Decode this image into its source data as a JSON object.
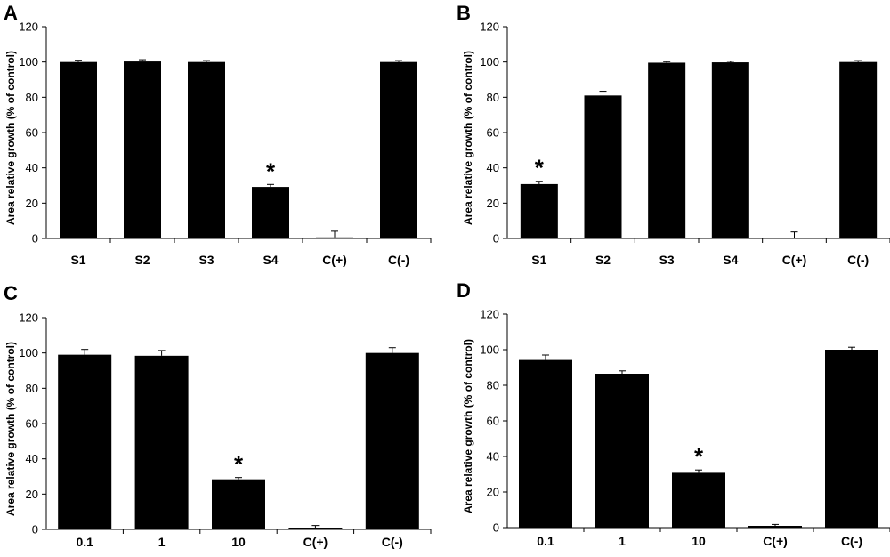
{
  "chart_data": [
    {
      "panel": "A",
      "type": "bar",
      "categories": [
        "S1",
        "S2",
        "S3",
        "S4",
        "C(+)",
        "C(-)"
      ],
      "values": [
        100,
        100.3,
        100,
        29.2,
        0.6,
        100
      ],
      "errors": [
        1.0,
        1.0,
        0.8,
        1.4,
        3.5,
        0.8
      ],
      "significant": [
        false,
        false,
        false,
        true,
        false,
        false
      ],
      "marker": "*",
      "ylabel": "Area relative growth  (% of control)",
      "yticks": [
        0,
        20,
        40,
        60,
        80,
        100,
        120
      ],
      "ylim": [
        0,
        120
      ],
      "color": "#000000"
    },
    {
      "panel": "B",
      "type": "bar",
      "categories": [
        "S1",
        "S2",
        "S3",
        "S4",
        "C(+)",
        "C(-)"
      ],
      "values": [
        30.8,
        81,
        99.6,
        99.8,
        0.5,
        100
      ],
      "errors": [
        1.6,
        2.4,
        0.6,
        0.6,
        3.2,
        0.8
      ],
      "significant": [
        true,
        false,
        false,
        false,
        false,
        false
      ],
      "marker": "*",
      "ylabel": "Area relative growth  (% of control)",
      "yticks": [
        0,
        20,
        40,
        60,
        80,
        100,
        120
      ],
      "ylim": [
        0,
        120
      ],
      "color": "#000000"
    },
    {
      "panel": "C",
      "type": "bar",
      "categories": [
        "0.1",
        "1",
        "10",
        "C(+)",
        "C(-)"
      ],
      "values": [
        99,
        98.4,
        28.4,
        1.0,
        100
      ],
      "errors": [
        3.0,
        3.0,
        1.0,
        1.2,
        3.0
      ],
      "significant": [
        false,
        false,
        true,
        false,
        false
      ],
      "marker": "*",
      "ylabel": "Area relative growth  (% of control)",
      "yticks": [
        0,
        20,
        40,
        60,
        80,
        100,
        120
      ],
      "ylim": [
        0,
        120
      ],
      "color": "#000000"
    },
    {
      "panel": "D",
      "type": "bar",
      "categories": [
        "0.1",
        "1",
        "10",
        "C(+)",
        "C(-)"
      ],
      "values": [
        94.2,
        86.5,
        30.8,
        1.0,
        100
      ],
      "errors": [
        2.8,
        1.6,
        1.6,
        0.8,
        1.4
      ],
      "significant": [
        false,
        false,
        true,
        false,
        false
      ],
      "marker": "*",
      "ylabel": "Area relative growth  (% of control)",
      "yticks": [
        0,
        20,
        40,
        60,
        80,
        100,
        120
      ],
      "ylim": [
        0,
        120
      ],
      "color": "#000000"
    }
  ]
}
